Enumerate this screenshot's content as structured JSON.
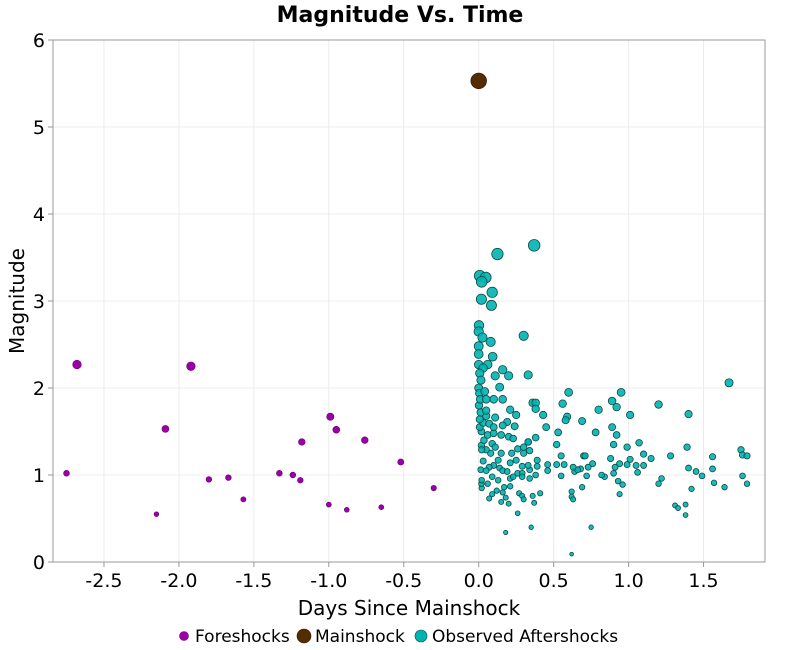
{
  "chart_data": {
    "type": "scatter",
    "title": "Magnitude Vs. Time",
    "xlabel": "Days Since Mainshock",
    "ylabel": "Magnitude",
    "xlim": [
      -2.84,
      1.91
    ],
    "ylim": [
      0,
      6
    ],
    "xticks": [
      -2.5,
      -2.0,
      -1.5,
      -1.0,
      -0.5,
      0.0,
      0.5,
      1.0,
      1.5
    ],
    "xtick_labels": [
      "-2.5",
      "-2.0",
      "-1.5",
      "-1.0",
      "-0.5",
      "0.0",
      "0.5",
      "1.0",
      "1.5"
    ],
    "yticks": [
      0,
      1,
      2,
      3,
      4,
      5,
      6
    ],
    "ytick_labels": [
      "0",
      "1",
      "2",
      "3",
      "4",
      "5",
      "6"
    ],
    "grid": true,
    "legend_placement": "bottom",
    "marker_size_encodes": "magnitude",
    "series": [
      {
        "name": "Foreshocks",
        "color": "#9b00a8",
        "edge": "#6a0073",
        "points": [
          [
            -2.75,
            1.02
          ],
          [
            -2.68,
            2.27
          ],
          [
            -2.09,
            1.53
          ],
          [
            -2.15,
            0.55
          ],
          [
            -1.92,
            2.25
          ],
          [
            -1.8,
            0.95
          ],
          [
            -1.67,
            0.97
          ],
          [
            -1.57,
            0.72
          ],
          [
            -1.33,
            1.02
          ],
          [
            -1.24,
            1.0
          ],
          [
            -1.19,
            0.94
          ],
          [
            -1.18,
            1.38
          ],
          [
            -1.0,
            0.66
          ],
          [
            -0.99,
            1.67
          ],
          [
            -0.95,
            1.52
          ],
          [
            -0.88,
            0.6
          ],
          [
            -0.76,
            1.4
          ],
          [
            -0.65,
            0.63
          ],
          [
            -0.52,
            1.15
          ],
          [
            -0.3,
            0.85
          ]
        ]
      },
      {
        "name": "Mainshock",
        "color": "#552b00",
        "edge": "#2a1500",
        "points": [
          [
            0.0,
            5.53
          ]
        ]
      },
      {
        "name": "Observed Aftershocks",
        "color": "#00b3b0",
        "edge": "#0b4a48",
        "points": [
          [
            0.37,
            3.64
          ],
          [
            0.125,
            3.54
          ],
          [
            0.007,
            3.29
          ],
          [
            0.047,
            3.27
          ],
          [
            0.02,
            3.22
          ],
          [
            0.09,
            3.1
          ],
          [
            0.018,
            3.02
          ],
          [
            0.085,
            2.95
          ],
          [
            0.002,
            2.72
          ],
          [
            0,
            2.65
          ],
          [
            0.025,
            2.58
          ],
          [
            0.08,
            2.53
          ],
          [
            0.3,
            2.6
          ],
          [
            0,
            2.48
          ],
          [
            0,
            2.39
          ],
          [
            0.093,
            2.36
          ],
          [
            0,
            2.27
          ],
          [
            0.06,
            2.27
          ],
          [
            0.16,
            2.21
          ],
          [
            0.11,
            2.14
          ],
          [
            0.2,
            2.14
          ],
          [
            0.33,
            2.15
          ],
          [
            1.67,
            2.06
          ],
          [
            0.029,
            2.23
          ],
          [
            0.007,
            2.17
          ],
          [
            0.015,
            2.09
          ],
          [
            0.14,
            2.01
          ],
          [
            0,
            2.0
          ],
          [
            0.005,
            1.94
          ],
          [
            0.04,
            1.96
          ],
          [
            0.1,
            1.87
          ],
          [
            0.16,
            1.87
          ],
          [
            0.6,
            1.95
          ],
          [
            0.95,
            1.95
          ],
          [
            0.89,
            1.85
          ],
          [
            0.92,
            1.78
          ],
          [
            1.2,
            1.81
          ],
          [
            1.4,
            1.7
          ],
          [
            0.56,
            1.82
          ],
          [
            0.36,
            1.83
          ],
          [
            0.38,
            1.83
          ],
          [
            0.38,
            1.76
          ],
          [
            0.21,
            1.75
          ],
          [
            0.25,
            1.69
          ],
          [
            0.43,
            1.69
          ],
          [
            0.59,
            1.67
          ],
          [
            0.58,
            1.63
          ],
          [
            0.69,
            1.62
          ],
          [
            0.8,
            1.75
          ],
          [
            1.01,
            1.69
          ],
          [
            0.11,
            1.66
          ],
          [
            0.19,
            1.61
          ],
          [
            0.24,
            1.56
          ],
          [
            0.45,
            1.55
          ],
          [
            0.53,
            1.49
          ],
          [
            0.78,
            1.49
          ],
          [
            0.89,
            1.55
          ],
          [
            0.92,
            1.46
          ],
          [
            0.38,
            1.43
          ],
          [
            0.2,
            1.44
          ],
          [
            0.33,
            1.38
          ],
          [
            0.52,
            1.35
          ],
          [
            0.9,
            1.35
          ],
          [
            1.07,
            1.37
          ],
          [
            0.99,
            1.32
          ],
          [
            1.39,
            1.32
          ],
          [
            1.1,
            1.24
          ],
          [
            1.15,
            1.19
          ],
          [
            1.28,
            1.22
          ],
          [
            1.56,
            1.21
          ],
          [
            1.75,
            1.29
          ],
          [
            1.76,
            1.23
          ],
          [
            1.79,
            1.22
          ],
          [
            1.4,
            1.08
          ],
          [
            1.45,
            1.04
          ],
          [
            1.49,
            0.99
          ],
          [
            1.56,
            1.07
          ],
          [
            1.76,
            0.99
          ],
          [
            1.79,
            0.9
          ],
          [
            1.64,
            0.86
          ],
          [
            1.57,
            0.91
          ],
          [
            1.42,
            0.84
          ],
          [
            1.22,
            0.96
          ],
          [
            1.2,
            0.9
          ],
          [
            1.31,
            0.65
          ],
          [
            1.33,
            0.62
          ],
          [
            1.38,
            0.66
          ],
          [
            1.38,
            0.54
          ],
          [
            1.06,
            1.03
          ],
          [
            1.1,
            1.11
          ],
          [
            1.05,
            1.11
          ],
          [
            1.01,
            1.18
          ],
          [
            0.99,
            1.12
          ],
          [
            0.94,
            1.13
          ],
          [
            0.91,
            1.09
          ],
          [
            0.88,
            1.19
          ],
          [
            0.9,
            1.02
          ],
          [
            0.93,
            0.93
          ],
          [
            0.96,
            0.89
          ],
          [
            0.94,
            0.78
          ],
          [
            0.84,
            0.98
          ],
          [
            0.82,
            1.0
          ],
          [
            0.76,
            1.13
          ],
          [
            0.73,
            1.09
          ],
          [
            0.7,
            1.22
          ],
          [
            0.71,
            1.22
          ],
          [
            0.69,
            0.86
          ],
          [
            0.72,
            0.99
          ],
          [
            0.68,
            1.07
          ],
          [
            0.64,
            1.04
          ],
          [
            0.66,
            1.06
          ],
          [
            0.63,
            1.09
          ],
          [
            0.62,
            0.81
          ],
          [
            0.62,
            0.75
          ],
          [
            0.63,
            0.72
          ],
          [
            0.75,
            0.4
          ],
          [
            0.62,
            0.09
          ],
          [
            0.55,
            1.22
          ],
          [
            0.55,
            0.99
          ],
          [
            0.57,
            1.12
          ],
          [
            0.52,
            1.12
          ],
          [
            0.46,
            1.12
          ],
          [
            0.46,
            1.05
          ],
          [
            0.41,
            0.79
          ],
          [
            0.37,
            0.68
          ],
          [
            0.36,
            0.76
          ],
          [
            0.35,
            0.4
          ],
          [
            0.26,
            0.56
          ],
          [
            0.18,
            0.34
          ],
          [
            0.2,
            0.67
          ],
          [
            0.15,
            0.69
          ],
          [
            0.07,
            0.73
          ],
          [
            0.09,
            0.78
          ],
          [
            0.18,
            0.74
          ],
          [
            0.16,
            0.8
          ],
          [
            0.12,
            0.82
          ],
          [
            0.21,
            0.87
          ],
          [
            0.27,
            0.79
          ],
          [
            0.29,
            0.76
          ],
          [
            0.3,
            0.72
          ],
          [
            0.02,
            0.85
          ],
          [
            0.018,
            0.9
          ],
          [
            0.02,
            0.94
          ],
          [
            0.06,
            0.9
          ],
          [
            0.09,
            0.98
          ],
          [
            0.13,
            0.94
          ],
          [
            0.17,
            0.86
          ],
          [
            0.21,
            0.96
          ],
          [
            0.23,
            0.98
          ],
          [
            0.26,
            1.02
          ],
          [
            0.29,
            1.02
          ],
          [
            0.29,
            0.98
          ],
          [
            0.34,
            0.96
          ],
          [
            0.38,
            1.0
          ],
          [
            0.34,
            1.06
          ],
          [
            0.39,
            1.1
          ],
          [
            0.39,
            1.17
          ],
          [
            0.33,
            1.11
          ],
          [
            0.29,
            1.1
          ],
          [
            0.25,
            1.17
          ],
          [
            0.22,
            1.25
          ],
          [
            0.3,
            1.25
          ],
          [
            0.34,
            1.28
          ],
          [
            0.26,
            1.3
          ],
          [
            0.3,
            1.32
          ],
          [
            0.33,
            1.38
          ],
          [
            0.23,
            1.42
          ],
          [
            0.15,
            1.25
          ],
          [
            0.13,
            1.17
          ],
          [
            0.1,
            1.11
          ],
          [
            0.07,
            1.09
          ],
          [
            0.03,
            1.16
          ],
          [
            0.014,
            1.06
          ],
          [
            0.05,
            1.05
          ],
          [
            0.14,
            1.08
          ],
          [
            0.16,
            1.05
          ],
          [
            0.19,
            1.04
          ],
          [
            0.21,
            1.14
          ],
          [
            0.08,
            1.25
          ],
          [
            0.05,
            1.29
          ],
          [
            0.018,
            1.34
          ],
          [
            0.02,
            1.29
          ],
          [
            0.035,
            1.4
          ],
          [
            0.09,
            1.36
          ],
          [
            0.11,
            1.32
          ],
          [
            0.06,
            1.46
          ],
          [
            0.1,
            1.48
          ],
          [
            0.15,
            1.46
          ],
          [
            0.018,
            1.5
          ],
          [
            0.007,
            1.55
          ],
          [
            0.03,
            1.6
          ],
          [
            0.07,
            1.59
          ],
          [
            0.1,
            1.55
          ],
          [
            0.16,
            1.57
          ],
          [
            0.007,
            1.64
          ],
          [
            0.05,
            1.68
          ],
          [
            0.013,
            1.72
          ],
          [
            0.05,
            1.74
          ],
          [
            0.002,
            1.8
          ],
          [
            0.01,
            1.87
          ],
          [
            0.05,
            1.87
          ]
        ]
      }
    ]
  }
}
